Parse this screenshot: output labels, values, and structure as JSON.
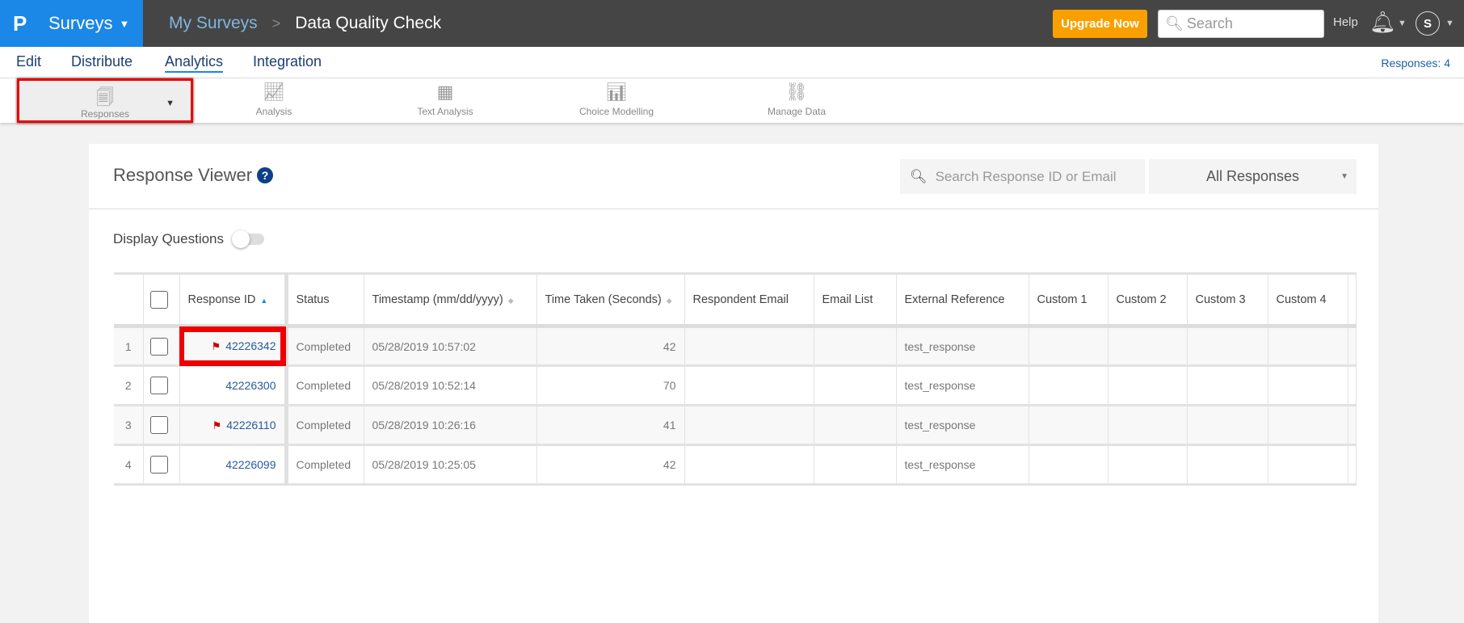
{
  "header": {
    "logo": "P",
    "app": "Surveys",
    "breadcrumb": [
      "My Surveys",
      "Data Quality Check"
    ],
    "upgrade": "Upgrade Now",
    "search_placeholder": "Search",
    "help": "Help",
    "avatar": "S"
  },
  "nav": {
    "tabs": [
      "Edit",
      "Distribute",
      "Analytics",
      "Integration"
    ],
    "active": "Analytics",
    "responses_count": "Responses: 4"
  },
  "toolbar": {
    "items": [
      {
        "label": "Responses",
        "icon": "responses-icon"
      },
      {
        "label": "Analysis",
        "icon": "chart-icon"
      },
      {
        "label": "Text Analysis",
        "icon": "text-analysis-icon"
      },
      {
        "label": "Choice Modelling",
        "icon": "choice-modelling-icon"
      },
      {
        "label": "Manage Data",
        "icon": "database-icon"
      }
    ]
  },
  "viewer": {
    "title": "Response Viewer",
    "search_placeholder": "Search Response ID or Email",
    "filter": "All Responses",
    "display_questions": "Display Questions",
    "display_questions_on": false
  },
  "table": {
    "columns": [
      "Response ID",
      "Status",
      "Timestamp (mm/dd/yyyy)",
      "Time Taken (Seconds)",
      "Respondent Email",
      "Email List",
      "External Reference",
      "Custom 1",
      "Custom 2",
      "Custom 3",
      "Custom 4"
    ],
    "rows": [
      {
        "n": "1",
        "id": "42226342",
        "flagged": true,
        "status": "Completed",
        "timestamp": "05/28/2019 10:57:02",
        "time": "42",
        "ext": "test_response"
      },
      {
        "n": "2",
        "id": "42226300",
        "flagged": false,
        "status": "Completed",
        "timestamp": "05/28/2019 10:52:14",
        "time": "70",
        "ext": "test_response"
      },
      {
        "n": "3",
        "id": "42226110",
        "flagged": true,
        "status": "Completed",
        "timestamp": "05/28/2019 10:26:16",
        "time": "41",
        "ext": "test_response"
      },
      {
        "n": "4",
        "id": "42226099",
        "flagged": false,
        "status": "Completed",
        "timestamp": "05/28/2019 10:25:05",
        "time": "42",
        "ext": "test_response"
      }
    ]
  },
  "colors": {
    "brand": "#1b87e6",
    "topbar": "#454545",
    "upgrade": "#f9a000",
    "highlight": "#e00000",
    "flag": "#cc0000"
  }
}
